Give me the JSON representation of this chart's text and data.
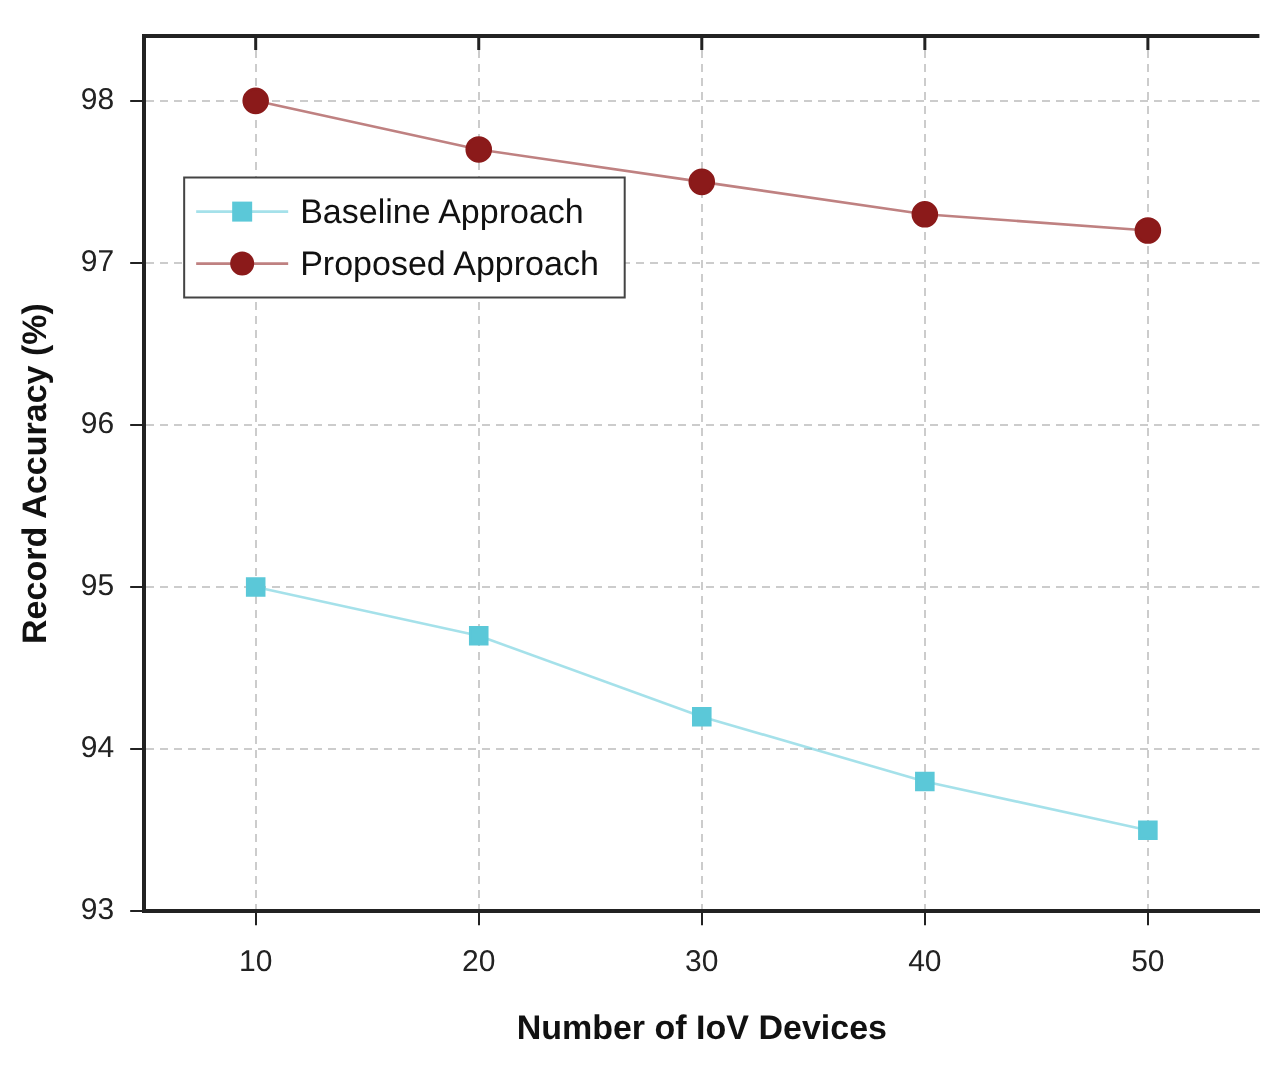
{
  "chart_data": {
    "type": "line",
    "xlabel": "Number of IoV Devices",
    "ylabel": "Record Accuracy (%)",
    "x": [
      10,
      20,
      30,
      40,
      50
    ],
    "series": [
      {
        "name": "Baseline Approach",
        "color": "#5bc8d8",
        "marker": "square",
        "values": [
          95.0,
          94.7,
          94.2,
          93.8,
          93.5
        ]
      },
      {
        "name": "Proposed Approach",
        "color": "#8b1a1a",
        "marker": "circle",
        "values": [
          98.0,
          97.7,
          97.5,
          97.3,
          97.2
        ]
      }
    ],
    "xlim": [
      5,
      55
    ],
    "xticks": [
      10,
      20,
      30,
      40,
      50
    ],
    "ylim": [
      93,
      98.4
    ],
    "yticks": [
      93,
      94,
      95,
      96,
      97,
      98
    ],
    "grid": true,
    "legend": "left",
    "line_style": "solid"
  }
}
